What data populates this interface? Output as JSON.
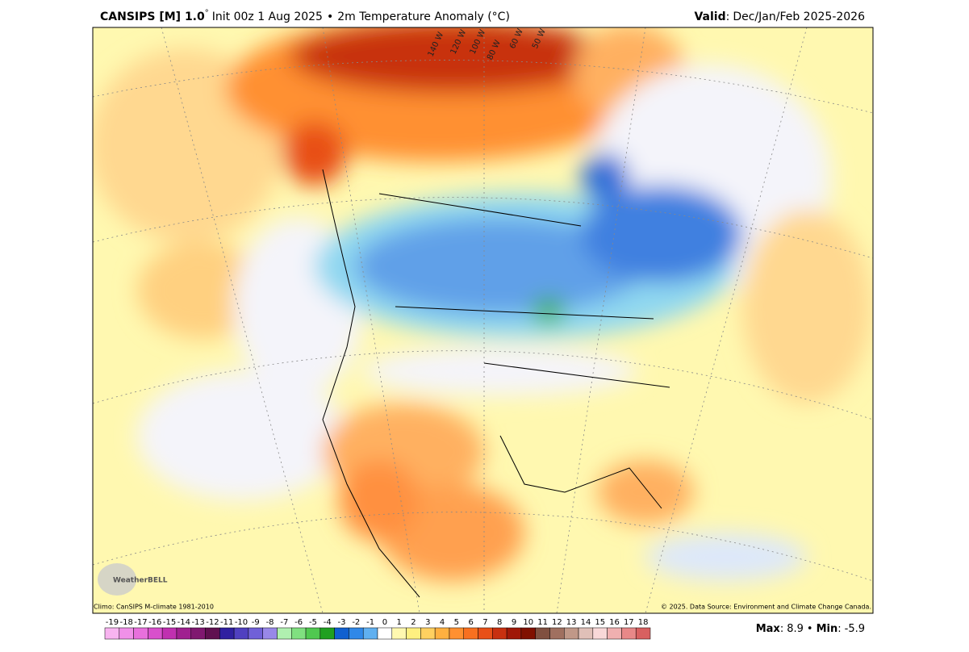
{
  "header": {
    "model": "CANSIPS [M] 1.0",
    "degree": "°",
    "init": "Init 00z 1 Aug 2025",
    "separator": "•",
    "field": "2m Temperature Anomaly (°C)",
    "valid_label": "Valid",
    "colon": ":",
    "valid": "Dec/Jan/Feb 2025-2026"
  },
  "map": {
    "meridians": [
      "140 W",
      "120 W",
      "100 W",
      "80 W",
      "60 W",
      "50 W"
    ]
  },
  "logo": "WeatherBELL",
  "footer": {
    "climo": "Climo: CanSIPS M-climate 1981-2010",
    "copyright": "© 2025. Data Source: Environment and Climate Change Canada."
  },
  "colorbar": {
    "labels": [
      -19,
      -18,
      -17,
      -16,
      -15,
      -14,
      -13,
      -12,
      -11,
      -10,
      -9,
      -8,
      -7,
      -6,
      -5,
      -4,
      -3,
      -2,
      -1,
      0,
      1,
      2,
      3,
      4,
      5,
      6,
      7,
      8,
      9,
      10,
      11,
      12,
      13,
      14,
      15,
      16,
      17,
      18
    ],
    "colors": [
      "#f8b4f0",
      "#f090e8",
      "#e870dc",
      "#d850cc",
      "#c030b0",
      "#a02090",
      "#801870",
      "#601050",
      "#3020a0",
      "#5040c0",
      "#7060d8",
      "#9888e8",
      "#b0f0b0",
      "#80e080",
      "#50c850",
      "#20a020",
      "#1060d0",
      "#3088e8",
      "#60b0f0",
      "#ffffff",
      "#fff8b0",
      "#fff080",
      "#ffd060",
      "#ffb040",
      "#ff9030",
      "#f87020",
      "#e85018",
      "#c83010",
      "#a01808",
      "#801000",
      "#805040",
      "#a07060",
      "#c09888",
      "#e0c0b8",
      "#f8d8d8",
      "#f0b0b0",
      "#e88888",
      "#d86060"
    ]
  },
  "stats": {
    "max_label": "Max",
    "colon": ":",
    "max": 8.9,
    "separator": "•",
    "min_label": "Min",
    "min": -5.9
  }
}
